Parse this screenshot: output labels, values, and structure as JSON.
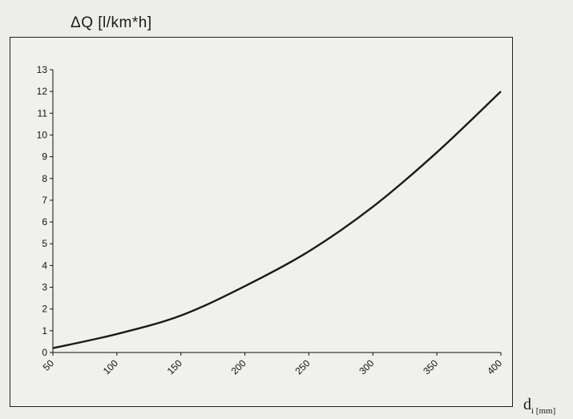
{
  "chart_data": {
    "type": "line",
    "ylabel": "ΔQ [l/km*h]",
    "xlabel": "d",
    "xlabel_sub": "i [mm]",
    "x": [
      50,
      100,
      150,
      200,
      250,
      300,
      350,
      400
    ],
    "series": [
      {
        "values": [
          0.2,
          0.85,
          1.7,
          3.05,
          4.65,
          6.7,
          9.2,
          12.0
        ]
      }
    ],
    "xlim": [
      50,
      400
    ],
    "ylim": [
      0,
      13
    ],
    "yticks": [
      0,
      1,
      2,
      3,
      4,
      5,
      6,
      7,
      8,
      9,
      10,
      11,
      12,
      13
    ],
    "xticks": [
      50,
      100,
      150,
      200,
      250,
      300,
      350,
      400
    ],
    "grid": false,
    "line_color": "#1a1a1a"
  }
}
